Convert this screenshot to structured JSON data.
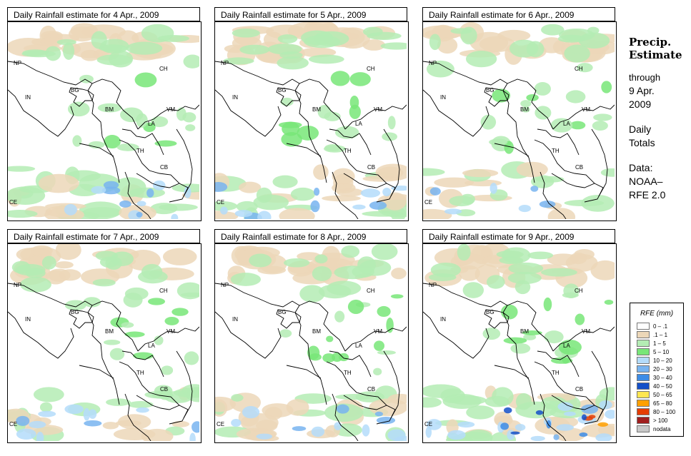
{
  "panels": [
    {
      "title": "Daily Rainfall estimate for  4 Apr., 2009",
      "intensity": 2
    },
    {
      "title": "Daily Rainfall estimate for  5 Apr., 2009",
      "intensity": 2
    },
    {
      "title": "Daily Rainfall estimate for  6 Apr., 2009",
      "intensity": 1
    },
    {
      "title": "Daily Rainfall estimate for  7 Apr., 2009",
      "intensity": 2
    },
    {
      "title": "Daily Rainfall estimate for  8 Apr., 2009",
      "intensity": 2
    },
    {
      "title": "Daily Rainfall estimate for  9 Apr., 2009",
      "intensity": 3
    }
  ],
  "country_labels": [
    "NP",
    "CH",
    "IN",
    "BG",
    "BM",
    "VM",
    "LA",
    "TH",
    "CB",
    "CE"
  ],
  "sidebar": {
    "heading_line1": "Precip.",
    "heading_line2": "Estimate",
    "through": "through",
    "date_line1": "9 Apr.",
    "date_line2": "2009",
    "daily": "Daily",
    "totals": "Totals",
    "data_label": "Data:",
    "source_line1": "NOAA–",
    "source_line2": "RFE 2.0"
  },
  "legend": {
    "title": "RFE (mm)",
    "items": [
      {
        "label": "0 – .1",
        "color": "#ffffff"
      },
      {
        "label": ".1 – 1",
        "color": "#ecd7b8"
      },
      {
        "label": "1 – 5",
        "color": "#b4ecb4"
      },
      {
        "label": "5 – 10",
        "color": "#78e678"
      },
      {
        "label": "10 – 20",
        "color": "#b4dcfa"
      },
      {
        "label": "20 – 30",
        "color": "#78b4f0"
      },
      {
        "label": "30 – 40",
        "color": "#3c8ce6"
      },
      {
        "label": "40 – 50",
        "color": "#1450c8"
      },
      {
        "label": "50 – 65",
        "color": "#ffe650"
      },
      {
        "label": "65 – 80",
        "color": "#ffa000"
      },
      {
        "label": "80 – 100",
        "color": "#e63c00"
      },
      {
        "label": "> 100",
        "color": "#a01e1e"
      },
      {
        "label": "nodata",
        "color": "#c8c8c8"
      }
    ]
  }
}
